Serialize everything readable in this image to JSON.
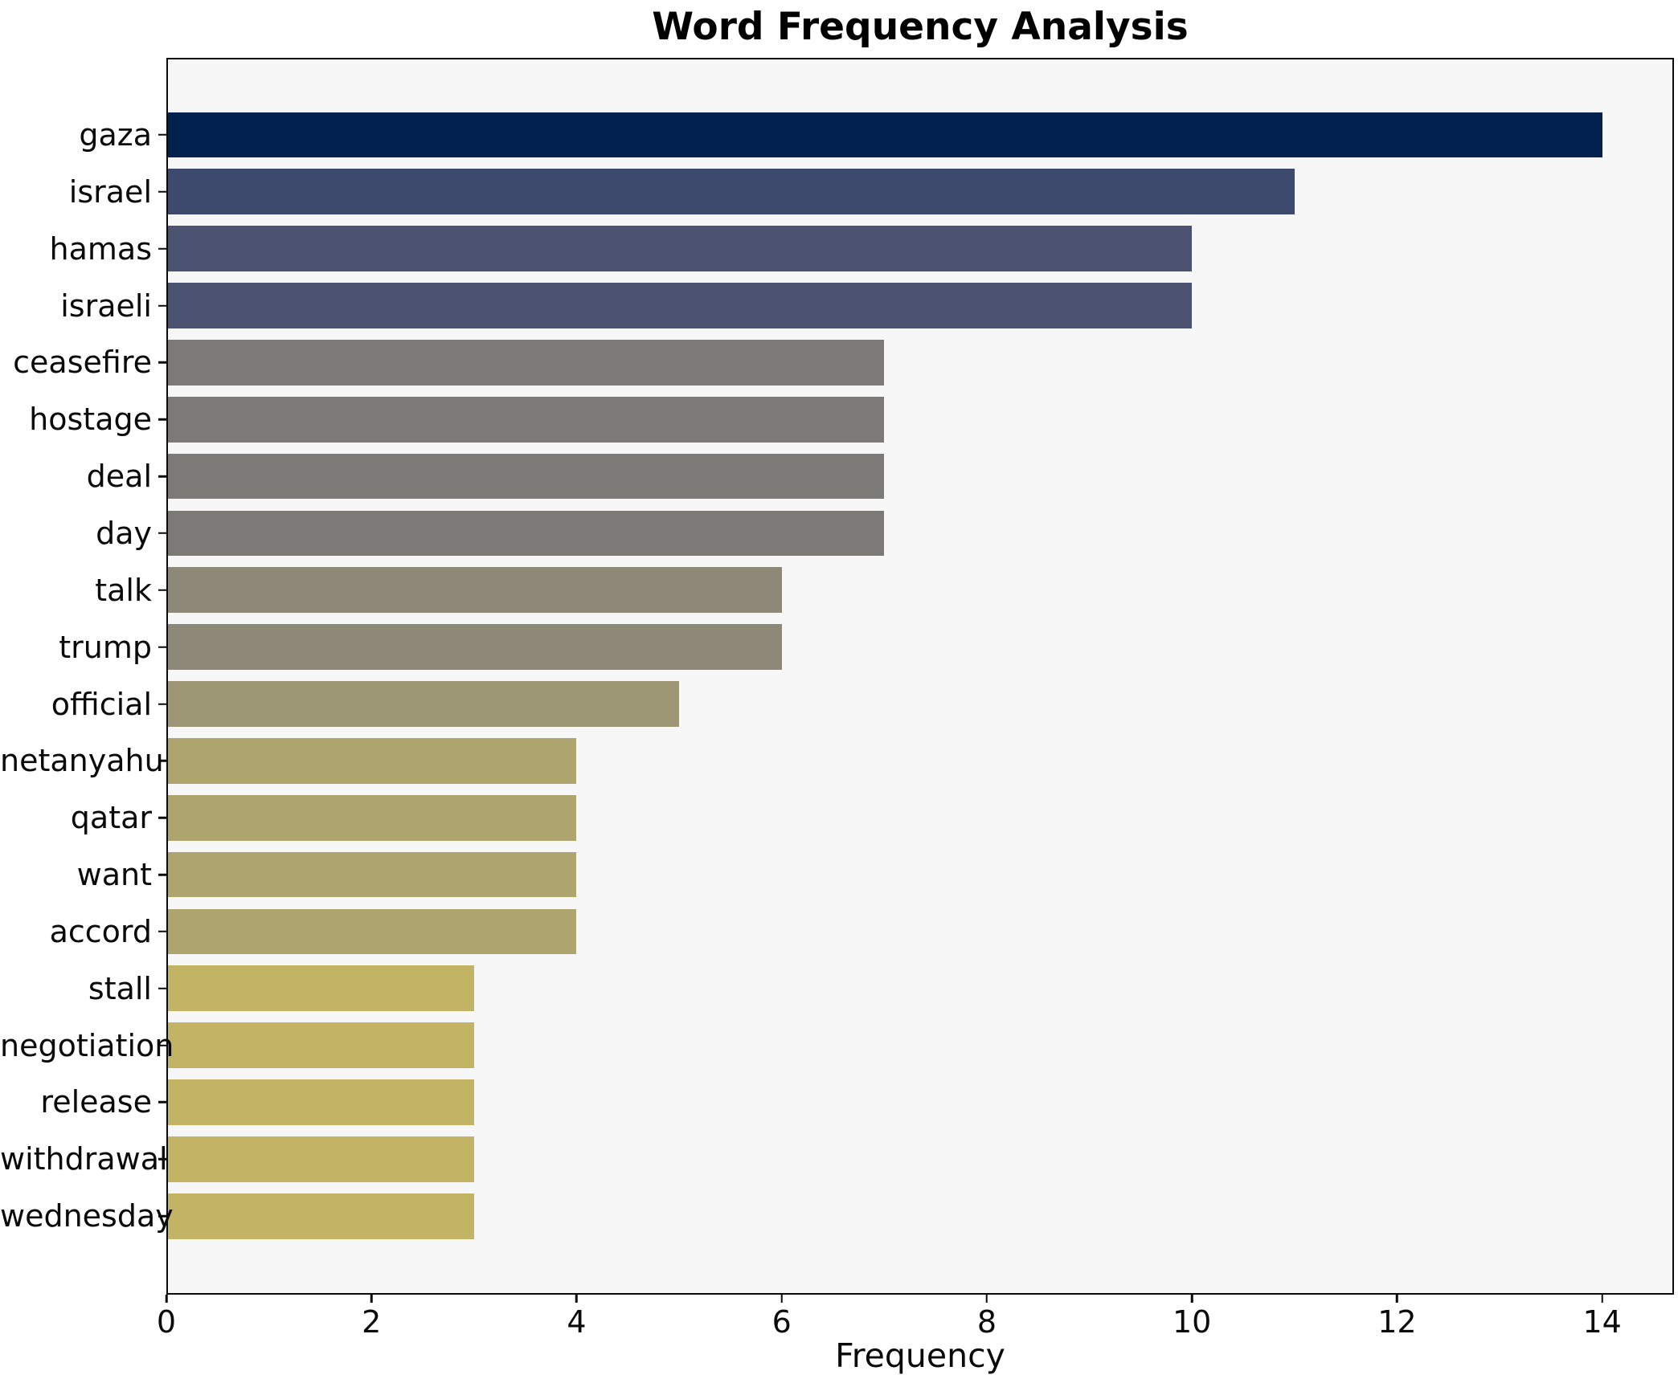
{
  "title": "Word Frequency Analysis",
  "chart_data": {
    "type": "bar",
    "orientation": "horizontal",
    "title": "Word Frequency Analysis",
    "xlabel": "Frequency",
    "ylabel": "",
    "categories": [
      "gaza",
      "israel",
      "hamas",
      "israeli",
      "ceasefire",
      "hostage",
      "deal",
      "day",
      "talk",
      "trump",
      "official",
      "netanyahu",
      "qatar",
      "want",
      "accord",
      "stall",
      "negotiation",
      "release",
      "withdrawal",
      "wednesday"
    ],
    "values": [
      14,
      11,
      10,
      10,
      7,
      7,
      7,
      7,
      6,
      6,
      5,
      4,
      4,
      4,
      4,
      3,
      3,
      3,
      3,
      3
    ],
    "bar_colors": [
      "#01224e",
      "#3d4a6e",
      "#4c5370",
      "#4c5370",
      "#7b7a76",
      "#7b7a76",
      "#7b7a76",
      "#7b7a76",
      "#8e8879",
      "#8e8879",
      "#9c9674",
      "#aea56e",
      "#aea56e",
      "#aea56e",
      "#aea56e",
      "#c3b364",
      "#c3b364",
      "#c3b364",
      "#c3b364",
      "#c3b364"
    ],
    "xlim": [
      0,
      14.7
    ],
    "xticks": [
      0,
      2,
      4,
      6,
      8,
      10,
      12,
      14
    ],
    "grid": false,
    "legend": "none",
    "plot_background": "#f7f7f8",
    "figure_background": "#ffffff",
    "spine_color": "#0a0a0a",
    "text_color": "#0a0a0a"
  }
}
